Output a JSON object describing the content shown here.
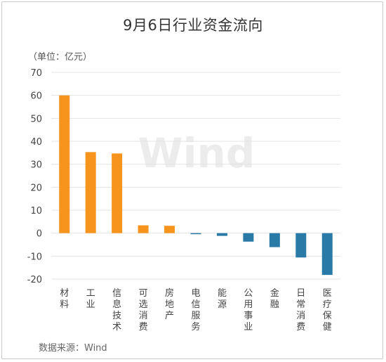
{
  "title": "9月6日行业资金流向",
  "unit_label": "（单位：亿元）",
  "source_label": "数据来源：Wind",
  "watermark": "Wind",
  "colors": {
    "positive": "#f7941d",
    "negative": "#2a7aa8",
    "grid": "#e3e3e3"
  },
  "chart_data": {
    "type": "bar",
    "title": "9月6日行业资金流向",
    "xlabel": "",
    "ylabel": "（单位：亿元）",
    "ylim": [
      -20,
      70
    ],
    "yticks": [
      70,
      60,
      50,
      40,
      30,
      20,
      10,
      0,
      -10,
      -20
    ],
    "grid": true,
    "categories": [
      "材料",
      "工业",
      "信息技术",
      "可选消费",
      "房地产",
      "电信服务",
      "能源",
      "公用事业",
      "金融",
      "日常消费",
      "医疗保健"
    ],
    "values": [
      60,
      35.3,
      34.7,
      3.4,
      3.2,
      -0.3,
      -1.2,
      -3.7,
      -6.1,
      -10.6,
      -18.2
    ]
  }
}
